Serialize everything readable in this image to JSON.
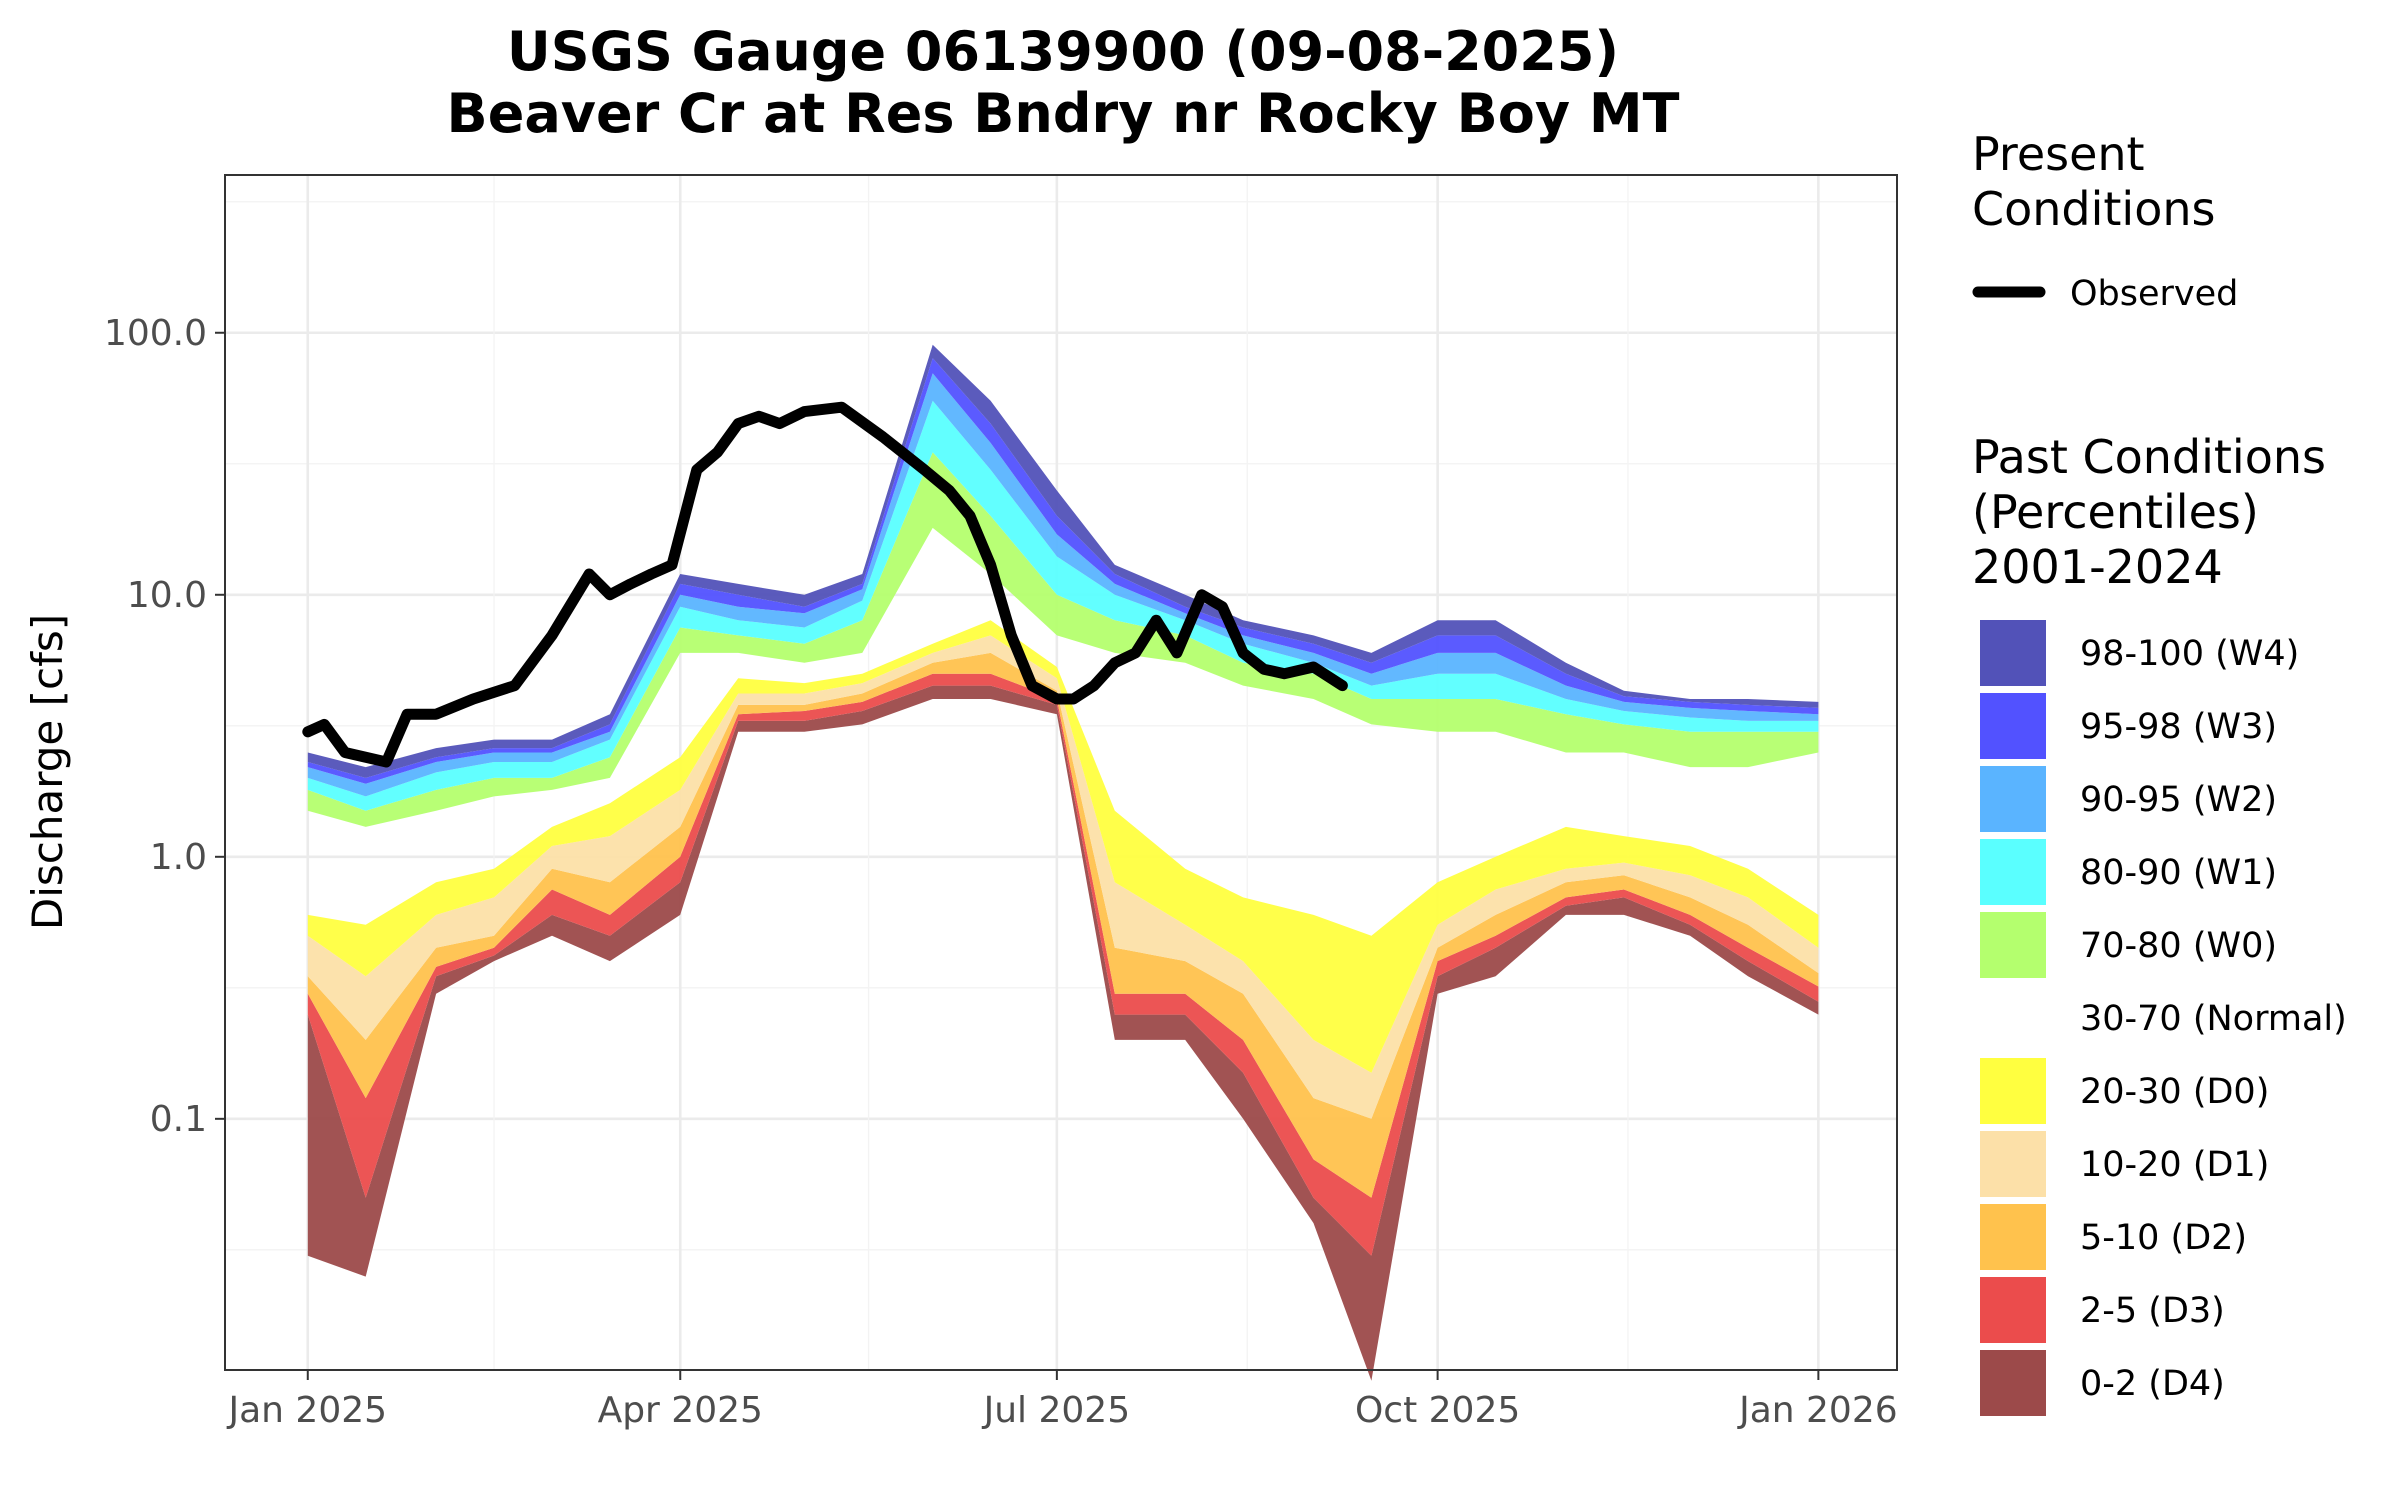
{
  "chart_data": {
    "type": "area",
    "title": [
      "USGS Gauge 06139900 (09-08-2025)",
      "Beaver Cr at Res Bndry nr Rocky Boy MT"
    ],
    "ylabel": "Discharge [cfs]",
    "xlabel": "",
    "y_scale": "log10",
    "ylim": [
      0.011,
      400
    ],
    "xlim": [
      "2024-12-12",
      "2026-01-20"
    ],
    "x_ticks": [
      "2025-01-01",
      "2025-04-01",
      "2025-07-01",
      "2025-10-01",
      "2026-01-01"
    ],
    "x_tick_labels": [
      "Jan 2025",
      "Apr 2025",
      "Jul 2025",
      "Oct 2025",
      "Jan 2026"
    ],
    "y_ticks": [
      0.1,
      1,
      10,
      100
    ],
    "y_tick_labels": [
      "0.1",
      "1.0",
      "10.0",
      "100.0"
    ],
    "grid": true,
    "legend_position": "right",
    "legend": {
      "present_title": [
        "Present",
        "Conditions"
      ],
      "observed_label": "Observed",
      "past_title": [
        "Past Conditions",
        "(Percentiles)",
        "2001-2024"
      ],
      "past_entries": [
        {
          "label": "98-100 (W4)",
          "color": "#5252b8"
        },
        {
          "label": "95-98 (W3)",
          "color": "#5252ff"
        },
        {
          "label": "90-95 (W2)",
          "color": "#5ab4ff"
        },
        {
          "label": "80-90 (W1)",
          "color": "#5affff"
        },
        {
          "label": "70-80 (W0)",
          "color": "#b4ff6e"
        },
        {
          "label": "30-70 (Normal)",
          "color": "#ffffff"
        },
        {
          "label": "20-30 (D0)",
          "color": "#ffff40"
        },
        {
          "label": "10-20 (D1)",
          "color": "#fce0a8"
        },
        {
          "label": "5-10 (D2)",
          "color": "#ffc24d"
        },
        {
          "label": "2-5 (D3)",
          "color": "#eb4c4c"
        },
        {
          "label": "0-2 (D4)",
          "color": "#9c4a4a"
        }
      ]
    },
    "percentile_dates": [
      "2025-01-01",
      "2025-01-15",
      "2025-02-01",
      "2025-02-15",
      "2025-03-01",
      "2025-03-15",
      "2025-04-01",
      "2025-04-15",
      "2025-05-01",
      "2025-05-15",
      "2025-06-01",
      "2025-06-15",
      "2025-07-01",
      "2025-07-15",
      "2025-08-01",
      "2025-08-15",
      "2025-09-01",
      "2025-09-15",
      "2025-10-01",
      "2025-10-15",
      "2025-11-01",
      "2025-11-15",
      "2025-12-01",
      "2025-12-15",
      "2026-01-01"
    ],
    "percentile_bands": [
      {
        "name": "0-2 (D4)",
        "color": "#9c4a4a",
        "lower": [
          0.03,
          0.025,
          0.3,
          0.4,
          0.5,
          0.4,
          0.6,
          3,
          3,
          3.2,
          4,
          4,
          3.5,
          0.2,
          0.2,
          0.1,
          0.04,
          0.01,
          0.3,
          0.35,
          0.6,
          0.6,
          0.5,
          0.35,
          0.25
        ],
        "upper": [
          0.25,
          0.05,
          0.35,
          0.42,
          0.6,
          0.5,
          0.8,
          3.3,
          3.3,
          3.6,
          4.5,
          4.5,
          3.8,
          0.25,
          0.25,
          0.15,
          0.05,
          0.03,
          0.35,
          0.45,
          0.65,
          0.7,
          0.55,
          0.4,
          0.28
        ]
      },
      {
        "name": "2-5 (D3)",
        "color": "#eb4c4c",
        "lower": [
          0.25,
          0.05,
          0.35,
          0.42,
          0.6,
          0.5,
          0.8,
          3.3,
          3.3,
          3.6,
          4.5,
          4.5,
          3.8,
          0.25,
          0.25,
          0.15,
          0.05,
          0.03,
          0.35,
          0.45,
          0.65,
          0.7,
          0.55,
          0.4,
          0.28
        ],
        "upper": [
          0.3,
          0.12,
          0.38,
          0.45,
          0.75,
          0.6,
          1,
          3.5,
          3.6,
          3.9,
          5,
          5,
          4,
          0.3,
          0.3,
          0.2,
          0.07,
          0.05,
          0.4,
          0.5,
          0.7,
          0.75,
          0.6,
          0.45,
          0.32
        ]
      },
      {
        "name": "5-10 (D2)",
        "color": "#ffc24d",
        "lower": [
          0.3,
          0.12,
          0.38,
          0.45,
          0.75,
          0.6,
          1,
          3.5,
          3.6,
          3.9,
          5,
          5,
          4,
          0.3,
          0.3,
          0.2,
          0.07,
          0.05,
          0.4,
          0.5,
          0.7,
          0.75,
          0.6,
          0.45,
          0.32
        ],
        "upper": [
          0.35,
          0.2,
          0.45,
          0.5,
          0.9,
          0.8,
          1.3,
          3.8,
          3.8,
          4.2,
          5.5,
          6,
          4.3,
          0.45,
          0.4,
          0.3,
          0.12,
          0.1,
          0.45,
          0.6,
          0.8,
          0.85,
          0.7,
          0.55,
          0.36
        ]
      },
      {
        "name": "10-20 (D1)",
        "color": "#fce0a8",
        "lower": [
          0.35,
          0.2,
          0.45,
          0.5,
          0.9,
          0.8,
          1.3,
          3.8,
          3.8,
          4.2,
          5.5,
          6,
          4.3,
          0.45,
          0.4,
          0.3,
          0.12,
          0.1,
          0.45,
          0.6,
          0.8,
          0.85,
          0.7,
          0.55,
          0.36
        ],
        "upper": [
          0.5,
          0.35,
          0.6,
          0.7,
          1.1,
          1.2,
          1.8,
          4.2,
          4.2,
          4.6,
          6,
          7,
          4.8,
          0.8,
          0.55,
          0.4,
          0.2,
          0.15,
          0.55,
          0.75,
          0.9,
          0.95,
          0.85,
          0.7,
          0.45
        ]
      },
      {
        "name": "20-30 (D0)",
        "color": "#ffff40",
        "lower": [
          0.5,
          0.35,
          0.6,
          0.7,
          1.1,
          1.2,
          1.8,
          4.2,
          4.2,
          4.6,
          6,
          7,
          4.8,
          0.8,
          0.55,
          0.4,
          0.2,
          0.15,
          0.55,
          0.75,
          0.9,
          0.95,
          0.85,
          0.7,
          0.45
        ],
        "upper": [
          0.6,
          0.55,
          0.8,
          0.9,
          1.3,
          1.6,
          2.4,
          4.8,
          4.6,
          5,
          6.5,
          8,
          5.3,
          1.5,
          0.9,
          0.7,
          0.6,
          0.5,
          0.8,
          1,
          1.3,
          1.2,
          1.1,
          0.9,
          0.6
        ]
      },
      {
        "name": "70-80 (W0)",
        "color": "#b4ff6e",
        "lower": [
          1.5,
          1.3,
          1.5,
          1.7,
          1.8,
          2,
          6,
          6,
          5.5,
          6,
          18,
          12,
          7,
          6,
          5.5,
          4.5,
          4,
          3.2,
          3,
          3,
          2.5,
          2.5,
          2.2,
          2.2,
          2.5
        ]
      },
      {
        "name": "80-90 (W1)",
        "color": "#5affff",
        "lower": [
          1.8,
          1.5,
          1.8,
          2,
          2,
          2.4,
          7.5,
          7,
          6.5,
          8,
          35,
          20,
          10,
          8,
          7,
          5.5,
          5,
          4,
          4,
          4,
          3.5,
          3.2,
          3,
          3,
          3
        ]
      },
      {
        "name": "90-95 (W2)",
        "color": "#5ab4ff",
        "lower": [
          2,
          1.7,
          2.1,
          2.3,
          2.3,
          2.8,
          9,
          8,
          7.5,
          9.5,
          55,
          30,
          14,
          10,
          8,
          6.5,
          5.5,
          4.5,
          5,
          5,
          4,
          3.6,
          3.4,
          3.3,
          3.3
        ]
      },
      {
        "name": "95-98 (W3)",
        "color": "#5252ff",
        "lower": [
          2.2,
          1.9,
          2.3,
          2.5,
          2.5,
          3,
          10,
          9,
          8.5,
          10.5,
          70,
          38,
          17,
          11,
          8.5,
          7,
          6,
          5,
          6,
          6,
          4.5,
          3.9,
          3.7,
          3.6,
          3.5
        ]
      },
      {
        "name": "98-100 (W4)",
        "color": "#5252b8",
        "lower": [
          2.3,
          2,
          2.4,
          2.6,
          2.6,
          3.2,
          11,
          10,
          9,
          11,
          80,
          45,
          20,
          12,
          9,
          7.5,
          6.5,
          5.5,
          7,
          7,
          5,
          4.1,
          3.9,
          3.8,
          3.7
        ],
        "upper": [
          2.5,
          2.2,
          2.6,
          2.8,
          2.8,
          3.5,
          12,
          11,
          10,
          12,
          90,
          55,
          25,
          13,
          10,
          8,
          7,
          6,
          8,
          8,
          5.5,
          4.3,
          4,
          4,
          3.9
        ]
      }
    ],
    "series": [
      {
        "name": "Observed",
        "color": "#000000",
        "x": [
          "2025-01-01",
          "2025-01-05",
          "2025-01-10",
          "2025-01-15",
          "2025-01-20",
          "2025-01-25",
          "2025-02-01",
          "2025-02-10",
          "2025-02-20",
          "2025-03-01",
          "2025-03-10",
          "2025-03-15",
          "2025-03-20",
          "2025-03-25",
          "2025-03-30",
          "2025-04-05",
          "2025-04-10",
          "2025-04-15",
          "2025-04-20",
          "2025-04-25",
          "2025-05-01",
          "2025-05-10",
          "2025-05-20",
          "2025-05-30",
          "2025-06-05",
          "2025-06-10",
          "2025-06-15",
          "2025-06-20",
          "2025-06-25",
          "2025-07-01",
          "2025-07-05",
          "2025-07-10",
          "2025-07-15",
          "2025-07-20",
          "2025-07-25",
          "2025-07-30",
          "2025-08-05",
          "2025-08-10",
          "2025-08-15",
          "2025-08-20",
          "2025-08-25",
          "2025-09-01",
          "2025-09-08"
        ],
        "y": [
          3,
          3.2,
          2.5,
          2.4,
          2.3,
          3.5,
          3.5,
          4,
          4.5,
          7,
          12,
          10,
          11,
          12,
          13,
          30,
          35,
          45,
          48,
          45,
          50,
          52,
          40,
          30,
          25,
          20,
          13,
          7,
          4.5,
          4,
          4,
          4.5,
          5.5,
          6,
          8,
          6,
          10,
          9,
          6,
          5.2,
          5,
          5.3,
          4.5
        ]
      }
    ]
  }
}
